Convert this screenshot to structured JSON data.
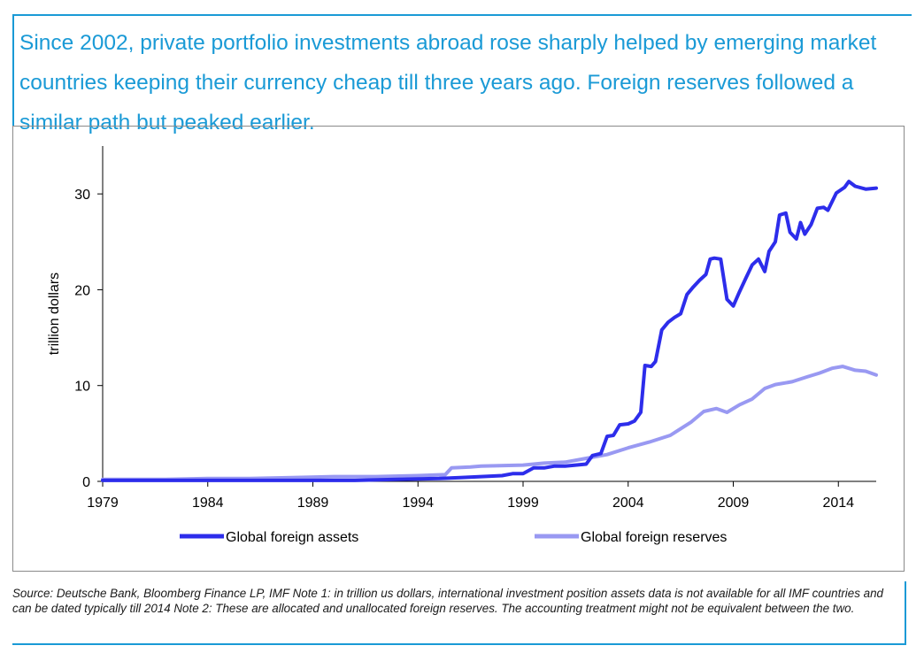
{
  "headline": "Since 2002, private portfolio investments abroad rose sharply helped by emerging market countries keeping their currency cheap till three years ago. Foreign reserves followed a similar path but peaked  earlier.",
  "source_note": "Source: Deutsche Bank, Bloomberg Finance LP, IMF Note 1: in trillion us dollars, international investment position assets data is not available for all IMF countries and can be dated typically till 2014 Note 2: These are allocated and unallocated foreign reserves. The accounting treatment might not be equivalent between the two.",
  "colors": {
    "accent": "#1a9ad6",
    "assets": "#2d2deb",
    "reserves": "#9999f2"
  },
  "chart_data": {
    "type": "line",
    "title": "",
    "xlabel": "",
    "ylabel": "trillion dollars",
    "xlim": [
      1979,
      2015.8
    ],
    "ylim": [
      0,
      35
    ],
    "x_ticks": [
      1979,
      1984,
      1989,
      1994,
      1999,
      2004,
      2009,
      2014
    ],
    "y_ticks": [
      0,
      10,
      20,
      30
    ],
    "grid": false,
    "legend_position": "bottom",
    "series": [
      {
        "name": "Global foreign assets",
        "color": "#2d2deb",
        "points": [
          [
            1979,
            0.1
          ],
          [
            1981,
            0.1
          ],
          [
            1983,
            0.1
          ],
          [
            1985,
            0.1
          ],
          [
            1987,
            0.1
          ],
          [
            1989,
            0.1
          ],
          [
            1991,
            0.1
          ],
          [
            1993,
            0.2
          ],
          [
            1995,
            0.3
          ],
          [
            1996,
            0.4
          ],
          [
            1997,
            0.5
          ],
          [
            1998,
            0.6
          ],
          [
            1998.5,
            0.8
          ],
          [
            1999,
            0.8
          ],
          [
            1999.5,
            1.4
          ],
          [
            2000,
            1.4
          ],
          [
            2000.5,
            1.6
          ],
          [
            2001,
            1.6
          ],
          [
            2001.5,
            1.7
          ],
          [
            2002,
            1.8
          ],
          [
            2002.3,
            2.7
          ],
          [
            2002.7,
            2.9
          ],
          [
            2003,
            4.7
          ],
          [
            2003.3,
            4.8
          ],
          [
            2003.6,
            5.9
          ],
          [
            2004,
            6.0
          ],
          [
            2004.3,
            6.3
          ],
          [
            2004.6,
            7.2
          ],
          [
            2004.8,
            12.1
          ],
          [
            2005.1,
            12.0
          ],
          [
            2005.3,
            12.5
          ],
          [
            2005.6,
            15.8
          ],
          [
            2005.9,
            16.6
          ],
          [
            2006.2,
            17.1
          ],
          [
            2006.5,
            17.5
          ],
          [
            2006.8,
            19.5
          ],
          [
            2007.1,
            20.3
          ],
          [
            2007.4,
            21.0
          ],
          [
            2007.7,
            21.6
          ],
          [
            2007.9,
            23.2
          ],
          [
            2008.1,
            23.3
          ],
          [
            2008.4,
            23.2
          ],
          [
            2008.7,
            19.0
          ],
          [
            2009.0,
            18.3
          ],
          [
            2009.3,
            19.8
          ],
          [
            2009.6,
            21.2
          ],
          [
            2009.9,
            22.6
          ],
          [
            2010.2,
            23.2
          ],
          [
            2010.5,
            21.9
          ],
          [
            2010.7,
            24.0
          ],
          [
            2011.0,
            25.0
          ],
          [
            2011.2,
            27.8
          ],
          [
            2011.5,
            28.0
          ],
          [
            2011.7,
            26.0
          ],
          [
            2012.0,
            25.3
          ],
          [
            2012.2,
            27.0
          ],
          [
            2012.4,
            25.8
          ],
          [
            2012.7,
            26.8
          ],
          [
            2013.0,
            28.5
          ],
          [
            2013.3,
            28.6
          ],
          [
            2013.5,
            28.3
          ],
          [
            2013.9,
            30.1
          ],
          [
            2014.3,
            30.7
          ],
          [
            2014.5,
            31.3
          ],
          [
            2014.8,
            30.8
          ],
          [
            2015.3,
            30.5
          ],
          [
            2015.8,
            30.6
          ]
        ]
      },
      {
        "name": "Global foreign reserves",
        "color": "#9999f2",
        "points": [
          [
            1979,
            0.2
          ],
          [
            1982,
            0.2
          ],
          [
            1984,
            0.3
          ],
          [
            1986,
            0.3
          ],
          [
            1988,
            0.4
          ],
          [
            1990,
            0.5
          ],
          [
            1992,
            0.5
          ],
          [
            1994,
            0.6
          ],
          [
            1995.3,
            0.7
          ],
          [
            1995.6,
            1.4
          ],
          [
            1996.5,
            1.5
          ],
          [
            1997,
            1.6
          ],
          [
            1999,
            1.7
          ],
          [
            2000,
            1.9
          ],
          [
            2001,
            2.0
          ],
          [
            2002,
            2.4
          ],
          [
            2003,
            2.8
          ],
          [
            2004,
            3.5
          ],
          [
            2005,
            4.1
          ],
          [
            2006,
            4.8
          ],
          [
            2007,
            6.2
          ],
          [
            2007.6,
            7.3
          ],
          [
            2008.2,
            7.6
          ],
          [
            2008.7,
            7.2
          ],
          [
            2009.3,
            8.0
          ],
          [
            2009.9,
            8.6
          ],
          [
            2010.5,
            9.7
          ],
          [
            2011.0,
            10.1
          ],
          [
            2011.8,
            10.4
          ],
          [
            2012.5,
            10.9
          ],
          [
            2013.1,
            11.3
          ],
          [
            2013.7,
            11.8
          ],
          [
            2014.2,
            12.0
          ],
          [
            2014.8,
            11.6
          ],
          [
            2015.3,
            11.5
          ],
          [
            2015.8,
            11.1
          ]
        ]
      }
    ]
  }
}
